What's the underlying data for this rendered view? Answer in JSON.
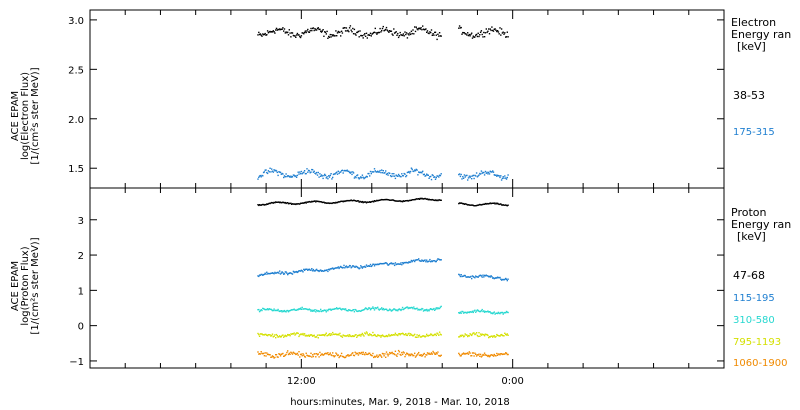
{
  "chart_data": [
    {
      "type": "scatter",
      "panel": "electron",
      "ylabel": [
        "ACE EPAM",
        "log(Electron Flux)",
        "[1/(cm²s ster MeV)]"
      ],
      "ylim": [
        1.3,
        3.1
      ],
      "yticks": [
        1.5,
        2.0,
        2.5,
        3.0
      ],
      "ytick_labels": [
        "1.5",
        "2.0",
        "2.5",
        "3.0"
      ],
      "legend_title": [
        "Electron",
        "Energy ran",
        "[keV]"
      ],
      "series": [
        {
          "name": "38-53",
          "color": "#000000",
          "segments": [
            {
              "start": 9.5,
              "end": 19.9,
              "y_start": 2.88,
              "y_end": 2.88,
              "noise": 0.05
            },
            {
              "start": 20.9,
              "end": 23.7,
              "y_start": 2.88,
              "y_end": 2.88,
              "noise": 0.05
            }
          ]
        },
        {
          "name": "175-315",
          "color": "#1f7fd0",
          "segments": [
            {
              "start": 9.5,
              "end": 19.9,
              "y_start": 1.45,
              "y_end": 1.45,
              "noise": 0.04
            },
            {
              "start": 20.9,
              "end": 23.7,
              "y_start": 1.44,
              "y_end": 1.44,
              "noise": 0.04
            }
          ]
        }
      ]
    },
    {
      "type": "scatter",
      "panel": "proton",
      "ylabel": [
        "ACE EPAM",
        "log(Proton Flux)",
        "[1/(cm²s ster MeV)]"
      ],
      "ylim": [
        -1.2,
        3.9
      ],
      "yticks": [
        -1,
        0,
        1,
        2,
        3
      ],
      "ytick_labels": [
        "−1",
        "0",
        "1",
        "2",
        "3"
      ],
      "legend_title": [
        "Proton",
        "Energy ran",
        "[keV]"
      ],
      "series": [
        {
          "name": "47-68",
          "color": "#000000",
          "segments": [
            {
              "start": 9.5,
              "end": 19.9,
              "y_start": 3.47,
              "y_end": 3.6,
              "noise": 0.02
            },
            {
              "start": 20.9,
              "end": 23.7,
              "y_start": 3.46,
              "y_end": 3.45,
              "noise": 0.02
            }
          ]
        },
        {
          "name": "115-195",
          "color": "#1f7fd0",
          "segments": [
            {
              "start": 9.5,
              "end": 19.9,
              "y_start": 1.45,
              "y_end": 1.9,
              "noise": 0.06
            },
            {
              "start": 20.9,
              "end": 23.7,
              "y_start": 1.45,
              "y_end": 1.35,
              "noise": 0.05
            }
          ]
        },
        {
          "name": "310-580",
          "color": "#27d8d0",
          "segments": [
            {
              "start": 9.5,
              "end": 19.9,
              "y_start": 0.45,
              "y_end": 0.5,
              "noise": 0.05
            },
            {
              "start": 20.9,
              "end": 23.7,
              "y_start": 0.42,
              "y_end": 0.4,
              "noise": 0.05
            }
          ]
        },
        {
          "name": "795-1193",
          "color": "#d4e000",
          "segments": [
            {
              "start": 9.5,
              "end": 19.9,
              "y_start": -0.25,
              "y_end": -0.25,
              "noise": 0.07
            },
            {
              "start": 20.9,
              "end": 23.7,
              "y_start": -0.25,
              "y_end": -0.25,
              "noise": 0.07
            }
          ]
        },
        {
          "name": "1060-1900",
          "color": "#f08a00",
          "segments": [
            {
              "start": 9.5,
              "end": 19.9,
              "y_start": -0.8,
              "y_end": -0.8,
              "noise": 0.1
            },
            {
              "start": 20.9,
              "end": 23.7,
              "y_start": -0.8,
              "y_end": -0.8,
              "noise": 0.08
            }
          ]
        }
      ]
    }
  ],
  "x_axis": {
    "label": "hours:minutes, Mar.  9, 2018 - Mar. 10, 2018",
    "xlim": [
      0,
      36
    ],
    "tick_labels": [
      {
        "x": 12,
        "label": "12:00"
      },
      {
        "x": 24,
        "label": "0:00"
      }
    ],
    "minor_step": 2
  }
}
